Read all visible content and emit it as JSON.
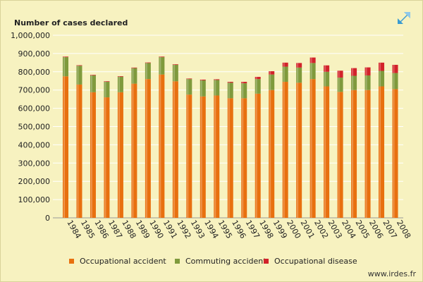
{
  "colors": {
    "occupational_accident": "#e8700f",
    "commuting_accident": "#7f9a3c",
    "occupational_disease": "#d2232a",
    "grid": "#ffffff",
    "background": "#f7f2c0"
  },
  "expand_icon": "diagonal-arrow-icon",
  "source_label": "www.irdes.fr",
  "chart_data": {
    "type": "bar",
    "stacked": true,
    "title": "Number of cases declared",
    "xlabel": "",
    "ylabel": "",
    "ylim": [
      0,
      1000000
    ],
    "yticks": [
      0,
      100000,
      200000,
      300000,
      400000,
      500000,
      600000,
      700000,
      800000,
      900000,
      1000000
    ],
    "ytick_labels": [
      "0",
      "100,000",
      "200,000",
      "300,000",
      "400,000",
      "500,000",
      "600,000",
      "700,000",
      "800,000",
      "900,000",
      "1,000,000"
    ],
    "grid": true,
    "legend_position": "bottom",
    "categories": [
      "1984",
      "1985",
      "1986",
      "1987",
      "1988",
      "1989",
      "1990",
      "1991",
      "1992",
      "1993",
      "1994",
      "1995",
      "1996",
      "1997",
      "1998",
      "1999",
      "2000",
      "2001",
      "2002",
      "2003",
      "2004",
      "2005",
      "2006",
      "2007",
      "2008"
    ],
    "series": [
      {
        "name": "Occupational accident",
        "color": "#e8700f",
        "values": [
          775000,
          730000,
          688000,
          660000,
          688000,
          735000,
          760000,
          785000,
          748000,
          675000,
          665000,
          670000,
          655000,
          655000,
          680000,
          700000,
          745000,
          740000,
          760000,
          720000,
          690000,
          700000,
          700000,
          720000,
          705000
        ]
      },
      {
        "name": "Commuting accident",
        "color": "#7f9a3c",
        "values": [
          105000,
          103000,
          92000,
          85000,
          85000,
          85000,
          88000,
          95000,
          90000,
          85000,
          88000,
          85000,
          85000,
          82000,
          80000,
          85000,
          83000,
          83000,
          88000,
          80000,
          78000,
          78000,
          80000,
          85000,
          88000
        ]
      },
      {
        "name": "Occupational disease",
        "color": "#d2232a",
        "values": [
          3000,
          3000,
          3000,
          3000,
          3000,
          3000,
          3000,
          3000,
          3000,
          3000,
          4000,
          4000,
          5000,
          8000,
          12000,
          18000,
          22000,
          25000,
          30000,
          35000,
          38000,
          42000,
          44000,
          45000,
          45000
        ]
      }
    ]
  }
}
